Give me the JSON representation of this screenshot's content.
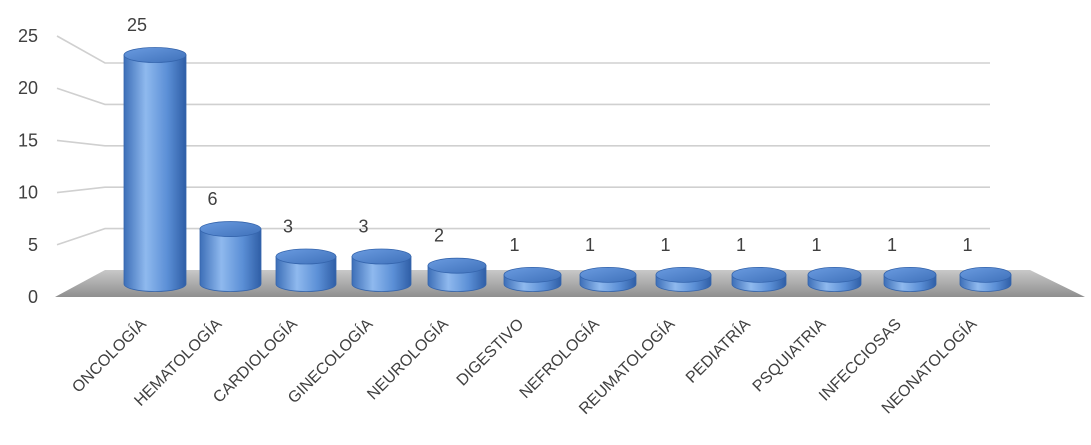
{
  "chart_data": {
    "type": "bar",
    "categories": [
      "ONCOLOGÍA",
      "HEMATOLOGÍA",
      "CARDIOLOGÍA",
      "GINECOLOGÍA",
      "NEUROLOGÍA",
      "DIGESTIVO",
      "NEFROLOGÍA",
      "REUMATOLOGÍA",
      "PEDIATRÍA",
      "PSQUIATRIA",
      "INFECCIOSAS",
      "NEONATOLOGÍA"
    ],
    "values": [
      25,
      6,
      3,
      3,
      2,
      1,
      1,
      1,
      1,
      1,
      1,
      1
    ],
    "data_labels": [
      "25",
      "6",
      "3",
      "3",
      "2",
      "1",
      "1",
      "1",
      "1",
      "1",
      "1",
      "1"
    ],
    "y_ticks": [
      "0",
      "5",
      "10",
      "15",
      "20",
      "25"
    ],
    "ylim": [
      0,
      25
    ],
    "grid": true,
    "style": "3d-cylinder",
    "bar_color": "#5b8fd6",
    "floor_color": "#a6a6a6"
  }
}
